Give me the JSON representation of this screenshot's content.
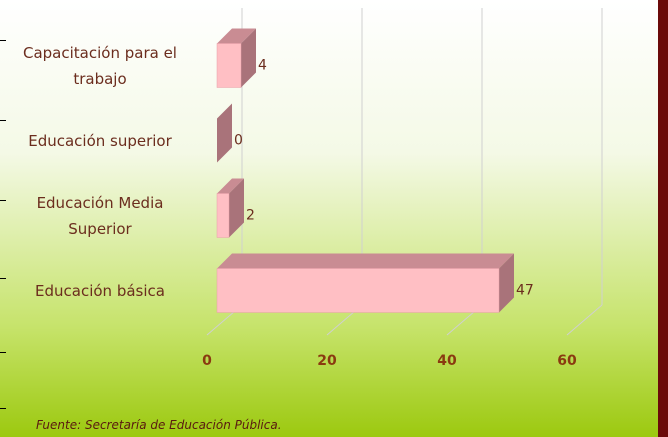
{
  "chart_data": {
    "type": "bar3d_horizontal",
    "categories": [
      "Capacitación para el trabajo",
      "Educación superior",
      "Educación Media Superior",
      "Educación básica"
    ],
    "values": [
      4,
      0,
      2,
      47
    ],
    "color": "#ffbfc4",
    "xlim": [
      0,
      60
    ],
    "xticks": [
      0,
      20,
      40,
      60
    ],
    "grid": true,
    "source": "Fuente: Secretaría de Educación Pública."
  }
}
